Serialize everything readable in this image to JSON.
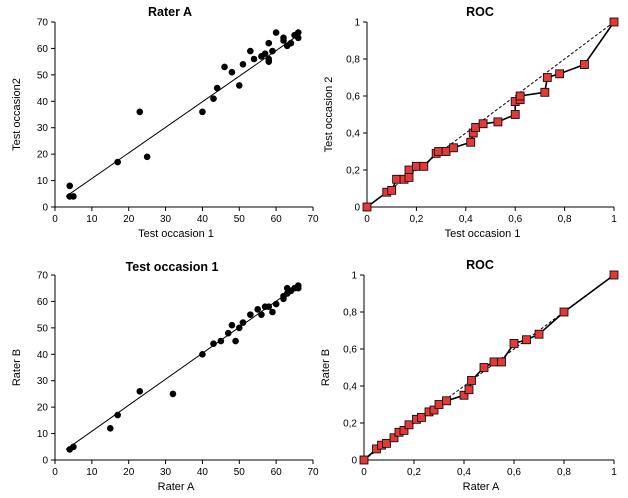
{
  "chart_data": [
    {
      "type": "scatter",
      "title": "Rater A",
      "xlabel": "Test occasion 1",
      "ylabel": "Test occasion2",
      "xlim": [
        0,
        70
      ],
      "ylim": [
        0,
        70
      ],
      "x_ticks": [
        "0",
        "10",
        "20",
        "30",
        "40",
        "50",
        "60",
        "70"
      ],
      "y_ticks": [
        "0",
        "10",
        "20",
        "30",
        "40",
        "50",
        "60",
        "70"
      ],
      "points": [
        [
          4,
          8
        ],
        [
          4,
          4
        ],
        [
          5,
          4
        ],
        [
          17,
          17
        ],
        [
          23,
          36
        ],
        [
          25,
          19
        ],
        [
          40,
          36
        ],
        [
          43,
          41
        ],
        [
          44,
          45
        ],
        [
          46,
          53
        ],
        [
          48,
          51
        ],
        [
          50,
          46
        ],
        [
          51,
          54
        ],
        [
          53,
          59
        ],
        [
          54,
          56
        ],
        [
          56,
          57
        ],
        [
          57,
          58
        ],
        [
          58,
          56
        ],
        [
          58,
          55
        ],
        [
          58,
          62
        ],
        [
          59,
          59
        ],
        [
          60,
          66
        ],
        [
          62,
          64
        ],
        [
          62,
          63
        ],
        [
          63,
          61
        ],
        [
          64,
          62
        ],
        [
          65,
          65
        ],
        [
          66,
          66
        ],
        [
          66,
          64
        ]
      ],
      "fit_line": [
        [
          3,
          4
        ],
        [
          66,
          65
        ]
      ],
      "grid": false
    },
    {
      "type": "line",
      "title": "ROC",
      "xlabel": "Test occasion 1",
      "ylabel": "Test occasion 2",
      "xlim": [
        0,
        1
      ],
      "ylim": [
        0,
        1
      ],
      "x_ticks": [
        "0",
        "0,2",
        "0,4",
        "0,6",
        "0,8",
        "1"
      ],
      "y_ticks": [
        "0",
        "0,2",
        "0,4",
        "0,6",
        "0,8",
        "1"
      ],
      "points": [
        [
          0,
          0
        ],
        [
          0.08,
          0.08
        ],
        [
          0.1,
          0.09
        ],
        [
          0.12,
          0.15
        ],
        [
          0.15,
          0.15
        ],
        [
          0.17,
          0.2
        ],
        [
          0.17,
          0.16
        ],
        [
          0.2,
          0.22
        ],
        [
          0.23,
          0.22
        ],
        [
          0.28,
          0.29
        ],
        [
          0.29,
          0.3
        ],
        [
          0.32,
          0.3
        ],
        [
          0.35,
          0.32
        ],
        [
          0.42,
          0.35
        ],
        [
          0.43,
          0.4
        ],
        [
          0.44,
          0.43
        ],
        [
          0.47,
          0.45
        ],
        [
          0.53,
          0.46
        ],
        [
          0.6,
          0.5
        ],
        [
          0.6,
          0.57
        ],
        [
          0.62,
          0.58
        ],
        [
          0.62,
          0.6
        ],
        [
          0.72,
          0.62
        ],
        [
          0.73,
          0.7
        ],
        [
          0.78,
          0.72
        ],
        [
          0.88,
          0.77
        ],
        [
          1,
          1
        ]
      ],
      "diagonal": true,
      "grid": false
    },
    {
      "type": "scatter",
      "title": "Test occasion 1",
      "xlabel": "Rater A",
      "ylabel": "Rater B",
      "xlim": [
        0,
        70
      ],
      "ylim": [
        0,
        70
      ],
      "x_ticks": [
        "0",
        "10",
        "20",
        "30",
        "40",
        "50",
        "60",
        "70"
      ],
      "y_ticks": [
        "0",
        "10",
        "20",
        "30",
        "40",
        "50",
        "60",
        "70"
      ],
      "points": [
        [
          4,
          4
        ],
        [
          5,
          5
        ],
        [
          15,
          12
        ],
        [
          17,
          17
        ],
        [
          23,
          26
        ],
        [
          32,
          25
        ],
        [
          40,
          40
        ],
        [
          43,
          44
        ],
        [
          45,
          45
        ],
        [
          47,
          48
        ],
        [
          48,
          51
        ],
        [
          49,
          45
        ],
        [
          50,
          50
        ],
        [
          51,
          52
        ],
        [
          53,
          55
        ],
        [
          55,
          57
        ],
        [
          56,
          55
        ],
        [
          57,
          58
        ],
        [
          58,
          58
        ],
        [
          59,
          56
        ],
        [
          60,
          59
        ],
        [
          62,
          61
        ],
        [
          62,
          62
        ],
        [
          63,
          63
        ],
        [
          63,
          65
        ],
        [
          64,
          64
        ],
        [
          65,
          65
        ],
        [
          66,
          66
        ],
        [
          66,
          65
        ]
      ],
      "fit_line": [
        [
          3,
          4
        ],
        [
          66,
          66
        ]
      ],
      "grid": false
    },
    {
      "type": "line",
      "title": "ROC",
      "xlabel": "Rater A",
      "ylabel": "Rater B",
      "xlim": [
        0,
        1
      ],
      "ylim": [
        0,
        1
      ],
      "x_ticks": [
        "0",
        "0,2",
        "0,4",
        "0,6",
        "0,8",
        "1"
      ],
      "y_ticks": [
        "0",
        "0,2",
        "0,4",
        "0,6",
        "0,8",
        "1"
      ],
      "points": [
        [
          0,
          0
        ],
        [
          0.05,
          0.06
        ],
        [
          0.07,
          0.08
        ],
        [
          0.09,
          0.09
        ],
        [
          0.12,
          0.12
        ],
        [
          0.14,
          0.15
        ],
        [
          0.16,
          0.16
        ],
        [
          0.18,
          0.19
        ],
        [
          0.21,
          0.22
        ],
        [
          0.23,
          0.23
        ],
        [
          0.26,
          0.26
        ],
        [
          0.28,
          0.27
        ],
        [
          0.3,
          0.3
        ],
        [
          0.33,
          0.32
        ],
        [
          0.4,
          0.35
        ],
        [
          0.42,
          0.38
        ],
        [
          0.43,
          0.43
        ],
        [
          0.48,
          0.5
        ],
        [
          0.52,
          0.53
        ],
        [
          0.55,
          0.53
        ],
        [
          0.6,
          0.63
        ],
        [
          0.65,
          0.65
        ],
        [
          0.7,
          0.68
        ],
        [
          0.8,
          0.8
        ],
        [
          1,
          1
        ]
      ],
      "diagonal": true,
      "grid": false
    }
  ]
}
